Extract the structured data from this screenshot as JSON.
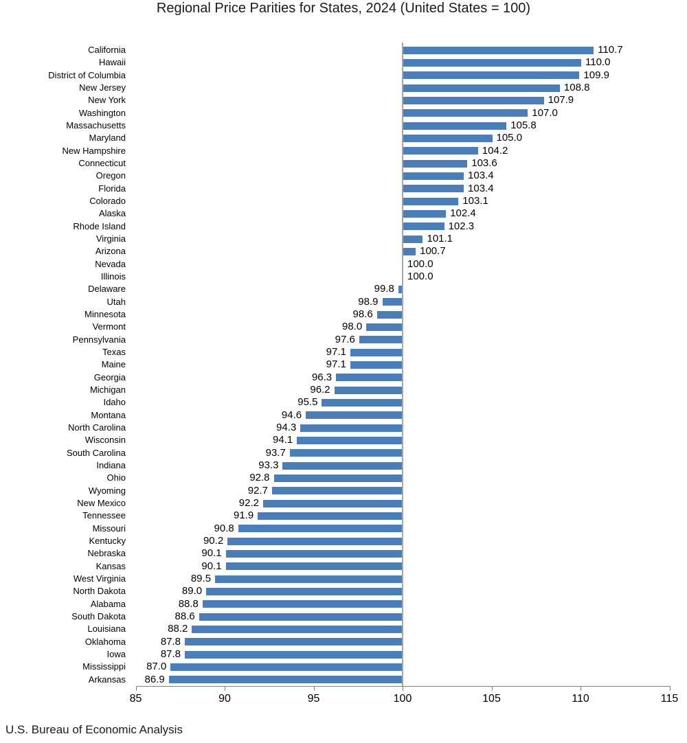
{
  "chart_data": {
    "type": "bar",
    "orientation": "horizontal",
    "title": "Regional Price Parities for States, 2024 (United States = 100)",
    "source": "U.S. Bureau of Economic Analysis",
    "baseline": 100,
    "xlim": [
      85,
      115
    ],
    "xticks": [
      85,
      90,
      95,
      100,
      105,
      110,
      115
    ],
    "grid": false,
    "legend": "none",
    "value_label_format": "0.1f",
    "bar_color": "#4A7EBB",
    "baseline_color": "#A6A6A6",
    "axis_color": "#808080",
    "categories": [
      "California",
      "Hawaii",
      "District of Columbia",
      "New Jersey",
      "New York",
      "Washington",
      "Massachusetts",
      "Maryland",
      "New Hampshire",
      "Connecticut",
      "Oregon",
      "Florida",
      "Colorado",
      "Alaska",
      "Rhode Island",
      "Virginia",
      "Arizona",
      "Nevada",
      "Illinois",
      "Delaware",
      "Utah",
      "Minnesota",
      "Vermont",
      "Pennsylvania",
      "Texas",
      "Maine",
      "Georgia",
      "Michigan",
      "Idaho",
      "Montana",
      "North Carolina",
      "Wisconsin",
      "South Carolina",
      "Indiana",
      "Ohio",
      "Wyoming",
      "New Mexico",
      "Tennessee",
      "Missouri",
      "Kentucky",
      "Nebraska",
      "Kansas",
      "West Virginia",
      "North Dakota",
      "Alabama",
      "South Dakota",
      "Louisiana",
      "Oklahoma",
      "Iowa",
      "Mississippi",
      "Arkansas"
    ],
    "values": [
      110.7,
      110.0,
      109.9,
      108.8,
      107.9,
      107.0,
      105.8,
      105.0,
      104.2,
      103.6,
      103.4,
      103.4,
      103.1,
      102.4,
      102.3,
      101.1,
      100.7,
      100.0,
      100.0,
      99.8,
      98.9,
      98.6,
      98.0,
      97.6,
      97.1,
      97.1,
      96.3,
      96.2,
      95.5,
      94.6,
      94.3,
      94.1,
      93.7,
      93.3,
      92.8,
      92.7,
      92.2,
      91.9,
      90.8,
      90.2,
      90.1,
      90.1,
      89.5,
      89.0,
      88.8,
      88.6,
      88.2,
      87.8,
      87.8,
      87.0,
      86.9
    ]
  }
}
